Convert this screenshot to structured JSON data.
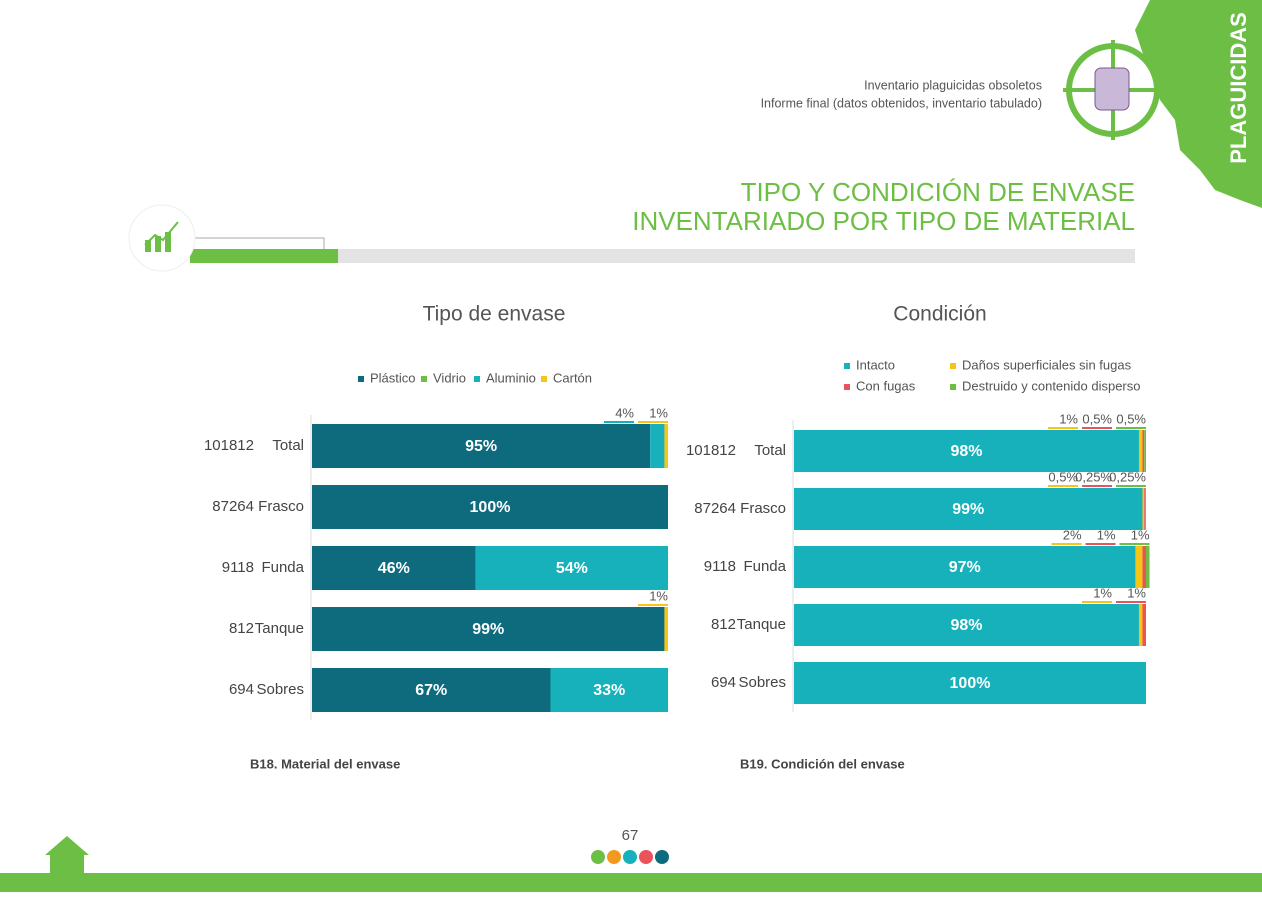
{
  "header": {
    "line1": "Inventario plaguicidas obsoletos",
    "line2": "Informe final (datos obtenidos, inventario tabulado)",
    "side": "PLAGUICIDAS"
  },
  "section_title": [
    "TIPO Y CONDICIÓN DE ENVASE",
    "INVENTARIADO POR TIPO DE MATERIAL"
  ],
  "chart_data": [
    {
      "type": "hbar_stacked",
      "title": "Tipo de envase",
      "caption": "B18. Material del envase",
      "categories": [
        "Total",
        "Frasco",
        "Funda",
        "Tanque",
        "Sobres"
      ],
      "counts": [
        101812,
        87264,
        9118,
        812,
        694
      ],
      "xlim": [
        0,
        100
      ],
      "series": [
        {
          "name": "Plástico",
          "color": "#0e6b7e",
          "values": [
            95,
            100,
            46,
            99,
            67
          ],
          "value_labels": [
            "95%",
            "100%",
            "46%",
            "99%",
            "67%"
          ]
        },
        {
          "name": "Vidrio",
          "color": "#6cbf44",
          "values": [
            0,
            0,
            0,
            0,
            0
          ],
          "value_labels": [
            null,
            null,
            null,
            null,
            null
          ]
        },
        {
          "name": "Aluminio",
          "color": "#17b1bb",
          "values": [
            4,
            0,
            54,
            0,
            33
          ],
          "value_labels": [
            "4%",
            null,
            "54%",
            null,
            "33%"
          ]
        },
        {
          "name": "Cartón",
          "color": "#f5c518",
          "values": [
            1,
            0,
            0,
            1,
            0
          ],
          "value_labels": [
            "1%",
            null,
            null,
            "1%",
            null
          ]
        }
      ]
    },
    {
      "type": "hbar_stacked",
      "title": "Condición",
      "caption": "B19. Condición del envase",
      "categories": [
        "Total",
        "Frasco",
        "Funda",
        "Tanque",
        "Sobres"
      ],
      "counts": [
        101812,
        87264,
        9118,
        812,
        694
      ],
      "xlim": [
        0,
        100
      ],
      "series": [
        {
          "name": "Intacto",
          "color": "#17b1bb",
          "values": [
            98,
            99,
            97,
            98,
            100
          ],
          "value_labels": [
            "98%",
            "99%",
            "97%",
            "98%",
            "100%"
          ]
        },
        {
          "name": "Daños superficiales sin fugas",
          "color": "#f5c518",
          "values": [
            1,
            0.5,
            2,
            1,
            0
          ],
          "value_labels": [
            "1%",
            "0,5%",
            "2%",
            "1%",
            null
          ]
        },
        {
          "name": "Con fugas",
          "color": "#e8545a",
          "values": [
            0.5,
            0.25,
            1,
            1,
            0
          ],
          "value_labels": [
            "0,5%",
            "0,25%",
            "1%",
            "1%",
            null
          ]
        },
        {
          "name": "Destruido y contenido disperso",
          "color": "#6cbf44",
          "values": [
            0.5,
            0.25,
            1,
            0,
            0
          ],
          "value_labels": [
            "0,5%",
            "0,25%",
            "1%",
            null,
            null
          ]
        }
      ]
    }
  ],
  "page_number": "67"
}
